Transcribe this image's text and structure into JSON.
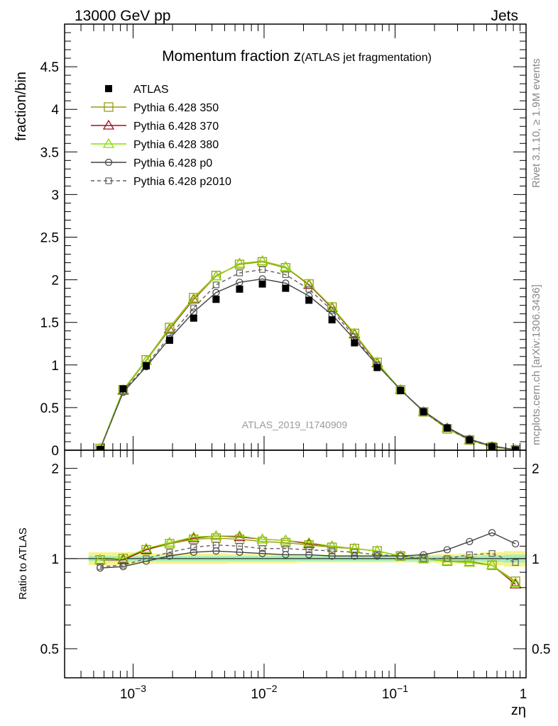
{
  "header": {
    "left": "13000 GeV pp",
    "right": "Jets"
  },
  "side": {
    "rivet": "Rivet 3.1.10, ≥ 1.9M events",
    "mcplots": "mcplots.cern.ch [arXiv:1306.3436]"
  },
  "chart_data": {
    "type": "line",
    "title_main": "Momentum fraction z",
    "title_sub": "(ATLAS jet fragmentation)",
    "analysis_label": "ATLAS_2019_I1740909",
    "xlabel": "zη",
    "ylabel_top": "fraction/bin",
    "ylabel_bottom": "Ratio to ATLAS",
    "x_scale": "log",
    "xlim": [
      0.0003,
      1
    ],
    "ylim_top": [
      0,
      5
    ],
    "ylim_bottom": [
      0.4,
      2.3
    ],
    "x_ticks": [
      {
        "value": 0.001,
        "base": "10",
        "exp": "−3"
      },
      {
        "value": 0.01,
        "base": "10",
        "exp": "−2"
      },
      {
        "value": 0.1,
        "base": "10",
        "exp": "−1"
      },
      {
        "value": 1,
        "label": "1"
      }
    ],
    "y_ticks_top": [
      "0",
      "0.5",
      "1",
      "1.5",
      "2",
      "2.5",
      "3",
      "3.5",
      "4",
      "4.5"
    ],
    "y_ticks_top_values": [
      0,
      0.5,
      1,
      1.5,
      2,
      2.5,
      3,
      3.5,
      4,
      4.5
    ],
    "y_ticks_bottom": [
      "0.5",
      "1",
      "2"
    ],
    "y_ticks_bottom_values": [
      0.5,
      1,
      2
    ],
    "x": [
      0.00056,
      0.00084,
      0.00126,
      0.0019,
      0.0029,
      0.0043,
      0.0065,
      0.0097,
      0.0146,
      0.022,
      0.033,
      0.049,
      0.073,
      0.11,
      0.165,
      0.25,
      0.37,
      0.55,
      0.83
    ],
    "data": {
      "name": "ATLAS",
      "values": [
        0.01,
        0.72,
        0.99,
        1.29,
        1.55,
        1.77,
        1.89,
        1.95,
        1.9,
        1.76,
        1.53,
        1.26,
        0.97,
        0.7,
        0.45,
        0.26,
        0.12,
        0.04,
        0.005
      ],
      "band_inner": [
        0.02,
        0.02,
        0.02,
        0.02,
        0.02,
        0.02,
        0.02,
        0.02,
        0.02,
        0.02,
        0.02,
        0.02,
        0.02,
        0.02,
        0.02,
        0.02,
        0.02,
        0.025,
        0.03
      ],
      "band_outer": [
        0.05,
        0.05,
        0.04,
        0.04,
        0.04,
        0.04,
        0.035,
        0.035,
        0.035,
        0.03,
        0.03,
        0.03,
        0.03,
        0.03,
        0.03,
        0.035,
        0.04,
        0.05,
        0.06
      ]
    },
    "series": [
      {
        "name": "Pythia 6.428 350",
        "color": "#9a9a1a",
        "marker": "square",
        "dash": false,
        "values": [
          0.02,
          0.71,
          1.06,
          1.44,
          1.79,
          2.05,
          2.18,
          2.21,
          2.14,
          1.95,
          1.68,
          1.37,
          1.03,
          0.71,
          0.45,
          0.25,
          0.12,
          0.04,
          0.004
        ],
        "ratio": [
          0.99,
          1.0,
          1.07,
          1.12,
          1.16,
          1.17,
          1.16,
          1.14,
          1.13,
          1.11,
          1.09,
          1.08,
          1.06,
          1.02,
          1.0,
          0.98,
          0.98,
          0.95,
          0.84
        ]
      },
      {
        "name": "Pythia 6.428 370",
        "color": "#a01020",
        "marker": "triangle",
        "dash": false,
        "values": [
          0.02,
          0.7,
          1.05,
          1.42,
          1.77,
          2.04,
          2.19,
          2.22,
          2.15,
          1.94,
          1.67,
          1.36,
          1.02,
          0.71,
          0.45,
          0.26,
          0.12,
          0.04,
          0.004
        ],
        "ratio": [
          0.99,
          0.99,
          1.07,
          1.13,
          1.17,
          1.19,
          1.18,
          1.16,
          1.15,
          1.12,
          1.1,
          1.08,
          1.06,
          1.02,
          1.0,
          0.98,
          0.97,
          0.95,
          0.82
        ]
      },
      {
        "name": "Pythia 6.428 380",
        "color": "#88e000",
        "marker": "triangle",
        "dash": false,
        "values": [
          0.02,
          0.71,
          1.05,
          1.43,
          1.78,
          2.04,
          2.19,
          2.22,
          2.15,
          1.95,
          1.68,
          1.37,
          1.03,
          0.71,
          0.45,
          0.26,
          0.12,
          0.04,
          0.004
        ],
        "ratio": [
          0.99,
          1.0,
          1.08,
          1.13,
          1.18,
          1.19,
          1.19,
          1.16,
          1.15,
          1.13,
          1.1,
          1.08,
          1.06,
          1.02,
          1.0,
          0.98,
          0.97,
          0.95,
          0.83
        ]
      },
      {
        "name": "Pythia 6.428 p0",
        "color": "#404040",
        "marker": "circle",
        "dash": false,
        "values": [
          0.01,
          0.68,
          0.98,
          1.31,
          1.62,
          1.85,
          1.97,
          2.01,
          1.96,
          1.81,
          1.59,
          1.3,
          1.0,
          0.71,
          0.46,
          0.27,
          0.13,
          0.05,
          0.006
        ],
        "ratio": [
          0.93,
          0.94,
          0.98,
          1.02,
          1.05,
          1.06,
          1.05,
          1.04,
          1.03,
          1.03,
          1.02,
          1.02,
          1.02,
          1.02,
          1.03,
          1.07,
          1.14,
          1.22,
          1.12
        ]
      },
      {
        "name": "Pythia 6.428 p2010",
        "color": "#606060",
        "marker": "square-small",
        "dash": true,
        "values": [
          0.01,
          0.69,
          1.0,
          1.34,
          1.67,
          1.94,
          2.08,
          2.12,
          2.06,
          1.89,
          1.64,
          1.33,
          1.0,
          0.71,
          0.45,
          0.26,
          0.12,
          0.04,
          0.005
        ],
        "ratio": [
          0.94,
          0.95,
          1.0,
          1.05,
          1.09,
          1.11,
          1.1,
          1.08,
          1.08,
          1.07,
          1.06,
          1.05,
          1.03,
          1.02,
          1.0,
          1.0,
          1.03,
          1.04,
          0.97
        ]
      }
    ]
  }
}
